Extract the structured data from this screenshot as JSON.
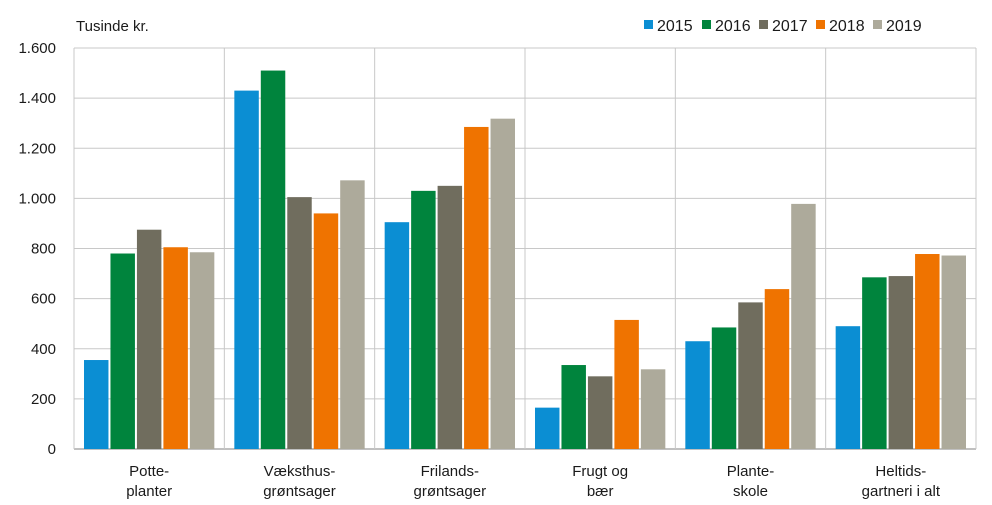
{
  "chart_data": {
    "type": "bar",
    "ylabel": "Tusinde kr.",
    "ylim": [
      0,
      1600
    ],
    "yticks": [
      0,
      200,
      400,
      600,
      800,
      1000,
      1200,
      1400,
      1600
    ],
    "ytick_labels": [
      "0",
      "200",
      "400",
      "600",
      "800",
      "1.000",
      "1.200",
      "1.400",
      "1.600"
    ],
    "grid": true,
    "legend_position": "top-right",
    "categories": [
      [
        "Potte-",
        "planter"
      ],
      [
        "Væksthus-",
        "grøntsager"
      ],
      [
        "Frilands-",
        "grøntsager"
      ],
      [
        "Frugt og",
        "bær"
      ],
      [
        "Plante-",
        "skole"
      ],
      [
        "Heltids-",
        "gartneri i alt"
      ]
    ],
    "series": [
      {
        "name": "2015",
        "color": "#0b8ed3",
        "values": [
          355,
          1430,
          905,
          165,
          430,
          490
        ]
      },
      {
        "name": "2016",
        "color": "#00843d",
        "values": [
          780,
          1510,
          1030,
          335,
          485,
          685
        ]
      },
      {
        "name": "2017",
        "color": "#706d5e",
        "values": [
          875,
          1005,
          1050,
          290,
          585,
          690
        ]
      },
      {
        "name": "2018",
        "color": "#ef7300",
        "values": [
          805,
          940,
          1285,
          515,
          638,
          778
        ]
      },
      {
        "name": "2019",
        "color": "#adaa9b",
        "values": [
          785,
          1072,
          1318,
          318,
          978,
          772
        ]
      }
    ]
  }
}
